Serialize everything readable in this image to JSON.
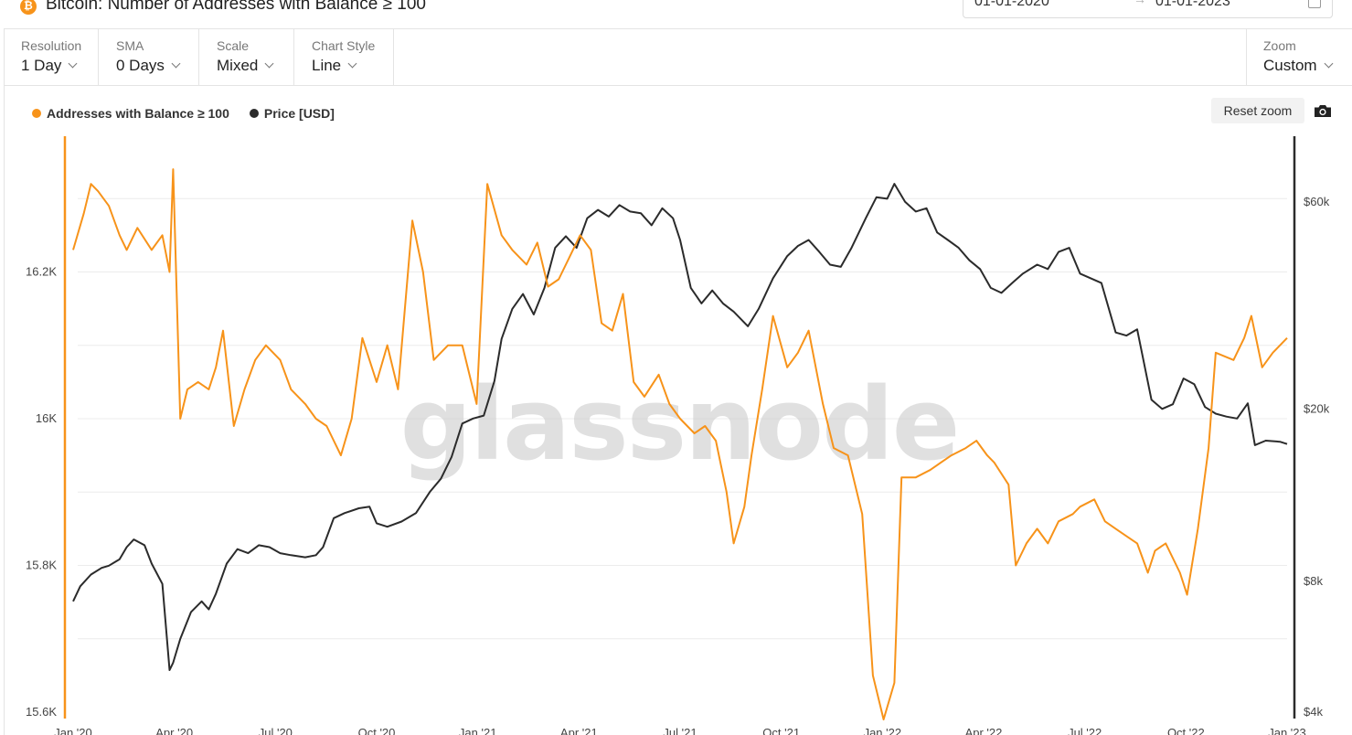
{
  "header": {
    "title": "Bitcoin: Number of Addresses with Balance ≥ 100",
    "date_start": "01-01-2020",
    "date_sep": "→",
    "date_end": "01-01-2023"
  },
  "toolbar": {
    "resolution": {
      "label": "Resolution",
      "value": "1 Day"
    },
    "sma": {
      "label": "SMA",
      "value": "0 Days"
    },
    "scale": {
      "label": "Scale",
      "value": "Mixed"
    },
    "chart_style": {
      "label": "Chart Style",
      "value": "Line"
    },
    "zoom": {
      "label": "Zoom",
      "value": "Custom"
    }
  },
  "controls": {
    "reset_zoom": "Reset zoom"
  },
  "watermark": "glassnode",
  "colors": {
    "addresses": "#f7931a",
    "price": "#2b2b2b",
    "grid": "#ececec"
  },
  "chart_data": {
    "type": "line",
    "x_tick_labels": [
      "Jan '20",
      "Apr '20",
      "Jul '20",
      "Oct '20",
      "Jan '21",
      "Apr '21",
      "Jul '21",
      "Oct '21",
      "Jan '22",
      "Apr '22",
      "Jul '22",
      "Oct '22",
      "Jan '23"
    ],
    "left_axis": {
      "ticks": [
        15600,
        15800,
        16000,
        16200
      ],
      "tick_labels": [
        "15.6K",
        "15.8K",
        "16K",
        "16.2K"
      ],
      "range": [
        15600,
        16385
      ]
    },
    "right_axis": {
      "scale": "log",
      "ticks": [
        4000,
        8000,
        20000,
        60000
      ],
      "tick_labels": [
        "$4k",
        "$8k",
        "$20k",
        "$60k"
      ],
      "range": [
        4000,
        85000
      ]
    },
    "legend_position": "top-left",
    "series": [
      {
        "name": "Addresses with Balance ≥ 100",
        "axis": "left",
        "points": [
          [
            0,
            16230
          ],
          [
            0.3,
            16280
          ],
          [
            0.5,
            16320
          ],
          [
            0.7,
            16310
          ],
          [
            1.0,
            16290
          ],
          [
            1.3,
            16250
          ],
          [
            1.5,
            16230
          ],
          [
            1.8,
            16260
          ],
          [
            2.2,
            16230
          ],
          [
            2.5,
            16250
          ],
          [
            2.7,
            16200
          ],
          [
            2.8,
            16340
          ],
          [
            3.0,
            16000
          ],
          [
            3.2,
            16040
          ],
          [
            3.5,
            16050
          ],
          [
            3.8,
            16040
          ],
          [
            4.0,
            16070
          ],
          [
            4.2,
            16120
          ],
          [
            4.5,
            15990
          ],
          [
            4.8,
            16040
          ],
          [
            5.1,
            16080
          ],
          [
            5.4,
            16100
          ],
          [
            5.8,
            16080
          ],
          [
            6.1,
            16040
          ],
          [
            6.5,
            16020
          ],
          [
            6.8,
            16000
          ],
          [
            7.1,
            15990
          ],
          [
            7.5,
            15950
          ],
          [
            7.8,
            16000
          ],
          [
            8.1,
            16110
          ],
          [
            8.5,
            16050
          ],
          [
            8.8,
            16100
          ],
          [
            9.1,
            16040
          ],
          [
            9.5,
            16270
          ],
          [
            9.8,
            16200
          ],
          [
            10.1,
            16080
          ],
          [
            10.5,
            16100
          ],
          [
            10.9,
            16100
          ],
          [
            11.3,
            16020
          ],
          [
            11.6,
            16320
          ],
          [
            12.0,
            16250
          ],
          [
            12.3,
            16230
          ],
          [
            12.7,
            16210
          ],
          [
            13.0,
            16240
          ],
          [
            13.3,
            16180
          ],
          [
            13.6,
            16190
          ],
          [
            13.9,
            16220
          ],
          [
            14.2,
            16250
          ],
          [
            14.5,
            16230
          ],
          [
            14.8,
            16130
          ],
          [
            15.1,
            16120
          ],
          [
            15.4,
            16170
          ],
          [
            15.7,
            16050
          ],
          [
            16.0,
            16030
          ],
          [
            16.4,
            16060
          ],
          [
            16.7,
            16020
          ],
          [
            17.0,
            16000
          ],
          [
            17.4,
            15980
          ],
          [
            17.7,
            15990
          ],
          [
            18.0,
            15970
          ],
          [
            18.3,
            15900
          ],
          [
            18.5,
            15830
          ],
          [
            18.8,
            15880
          ],
          [
            19.0,
            15950
          ],
          [
            19.3,
            16040
          ],
          [
            19.6,
            16140
          ],
          [
            20.0,
            16070
          ],
          [
            20.3,
            16090
          ],
          [
            20.6,
            16120
          ],
          [
            21.0,
            16020
          ],
          [
            21.3,
            15960
          ],
          [
            21.7,
            15950
          ],
          [
            22.1,
            15870
          ],
          [
            22.4,
            15650
          ],
          [
            22.7,
            15590
          ],
          [
            23.0,
            15640
          ],
          [
            23.2,
            15920
          ],
          [
            23.6,
            15920
          ],
          [
            24.0,
            15930
          ],
          [
            24.3,
            15940
          ],
          [
            24.6,
            15950
          ],
          [
            25.0,
            15960
          ],
          [
            25.3,
            15970
          ],
          [
            25.6,
            15950
          ],
          [
            25.8,
            15940
          ],
          [
            26.2,
            15910
          ],
          [
            26.4,
            15800
          ],
          [
            26.7,
            15830
          ],
          [
            27.0,
            15850
          ],
          [
            27.3,
            15830
          ],
          [
            27.6,
            15860
          ],
          [
            28.0,
            15870
          ],
          [
            28.2,
            15880
          ],
          [
            28.6,
            15890
          ],
          [
            28.9,
            15860
          ],
          [
            29.2,
            15850
          ],
          [
            29.5,
            15840
          ],
          [
            29.8,
            15830
          ],
          [
            30.1,
            15790
          ],
          [
            30.3,
            15820
          ],
          [
            30.6,
            15830
          ],
          [
            31.0,
            15790
          ],
          [
            31.2,
            15760
          ],
          [
            31.5,
            15850
          ],
          [
            31.8,
            15960
          ],
          [
            32.0,
            16090
          ],
          [
            32.5,
            16080
          ],
          [
            32.8,
            16110
          ],
          [
            33.0,
            16140
          ],
          [
            33.3,
            16070
          ],
          [
            33.6,
            16090
          ],
          [
            34.0,
            16110
          ]
        ]
      },
      {
        "name": "Price [USD]",
        "axis": "right",
        "points": [
          [
            0,
            7200
          ],
          [
            0.2,
            7800
          ],
          [
            0.5,
            8300
          ],
          [
            0.8,
            8600
          ],
          [
            1.0,
            8700
          ],
          [
            1.3,
            9000
          ],
          [
            1.5,
            9600
          ],
          [
            1.7,
            10000
          ],
          [
            2.0,
            9700
          ],
          [
            2.2,
            8800
          ],
          [
            2.5,
            7900
          ],
          [
            2.7,
            5000
          ],
          [
            2.8,
            5200
          ],
          [
            3.0,
            5900
          ],
          [
            3.3,
            6800
          ],
          [
            3.6,
            7200
          ],
          [
            3.8,
            6900
          ],
          [
            4.0,
            7500
          ],
          [
            4.3,
            8800
          ],
          [
            4.6,
            9500
          ],
          [
            4.9,
            9300
          ],
          [
            5.2,
            9700
          ],
          [
            5.5,
            9600
          ],
          [
            5.8,
            9300
          ],
          [
            6.1,
            9200
          ],
          [
            6.5,
            9100
          ],
          [
            6.8,
            9200
          ],
          [
            7.0,
            9600
          ],
          [
            7.3,
            11200
          ],
          [
            7.6,
            11500
          ],
          [
            8.0,
            11800
          ],
          [
            8.3,
            11900
          ],
          [
            8.5,
            10900
          ],
          [
            8.8,
            10700
          ],
          [
            9.2,
            11000
          ],
          [
            9.6,
            11500
          ],
          [
            10.0,
            12900
          ],
          [
            10.3,
            13800
          ],
          [
            10.6,
            15500
          ],
          [
            10.9,
            18500
          ],
          [
            11.2,
            19000
          ],
          [
            11.5,
            19300
          ],
          [
            11.8,
            23200
          ],
          [
            12.0,
            29000
          ],
          [
            12.3,
            34000
          ],
          [
            12.6,
            36800
          ],
          [
            12.9,
            33000
          ],
          [
            13.2,
            38000
          ],
          [
            13.5,
            47000
          ],
          [
            13.8,
            50000
          ],
          [
            14.1,
            47000
          ],
          [
            14.4,
            55000
          ],
          [
            14.7,
            57500
          ],
          [
            15.0,
            55500
          ],
          [
            15.3,
            59000
          ],
          [
            15.6,
            57000
          ],
          [
            15.9,
            56500
          ],
          [
            16.2,
            53000
          ],
          [
            16.5,
            58000
          ],
          [
            16.8,
            55000
          ],
          [
            17.0,
            49000
          ],
          [
            17.3,
            38000
          ],
          [
            17.6,
            35000
          ],
          [
            17.9,
            37500
          ],
          [
            18.2,
            35000
          ],
          [
            18.5,
            33500
          ],
          [
            18.9,
            31000
          ],
          [
            19.2,
            34000
          ],
          [
            19.6,
            40000
          ],
          [
            20.0,
            45000
          ],
          [
            20.3,
            47500
          ],
          [
            20.6,
            49000
          ],
          [
            20.9,
            46000
          ],
          [
            21.2,
            43000
          ],
          [
            21.5,
            42500
          ],
          [
            21.8,
            47000
          ],
          [
            22.2,
            55000
          ],
          [
            22.5,
            61500
          ],
          [
            22.8,
            61000
          ],
          [
            23.0,
            66000
          ],
          [
            23.3,
            60000
          ],
          [
            23.6,
            57000
          ],
          [
            23.9,
            58000
          ],
          [
            24.2,
            51000
          ],
          [
            24.5,
            49000
          ],
          [
            24.8,
            47000
          ],
          [
            25.1,
            44000
          ],
          [
            25.4,
            42000
          ],
          [
            25.7,
            38000
          ],
          [
            26.0,
            37000
          ],
          [
            26.3,
            39000
          ],
          [
            26.6,
            41000
          ],
          [
            27.0,
            43000
          ],
          [
            27.3,
            42000
          ],
          [
            27.6,
            46000
          ],
          [
            27.9,
            47000
          ],
          [
            28.2,
            41000
          ],
          [
            28.5,
            40000
          ],
          [
            28.8,
            39000
          ],
          [
            29.2,
            30000
          ],
          [
            29.5,
            29500
          ],
          [
            29.8,
            30500
          ],
          [
            30.2,
            21000
          ],
          [
            30.5,
            20000
          ],
          [
            30.8,
            20500
          ],
          [
            31.1,
            23500
          ],
          [
            31.4,
            22800
          ],
          [
            31.7,
            20200
          ],
          [
            32.0,
            19500
          ],
          [
            32.3,
            19200
          ],
          [
            32.6,
            19000
          ],
          [
            32.9,
            20600
          ],
          [
            33.1,
            16500
          ],
          [
            33.4,
            16900
          ],
          [
            33.8,
            16800
          ],
          [
            34.0,
            16600
          ]
        ]
      }
    ]
  }
}
